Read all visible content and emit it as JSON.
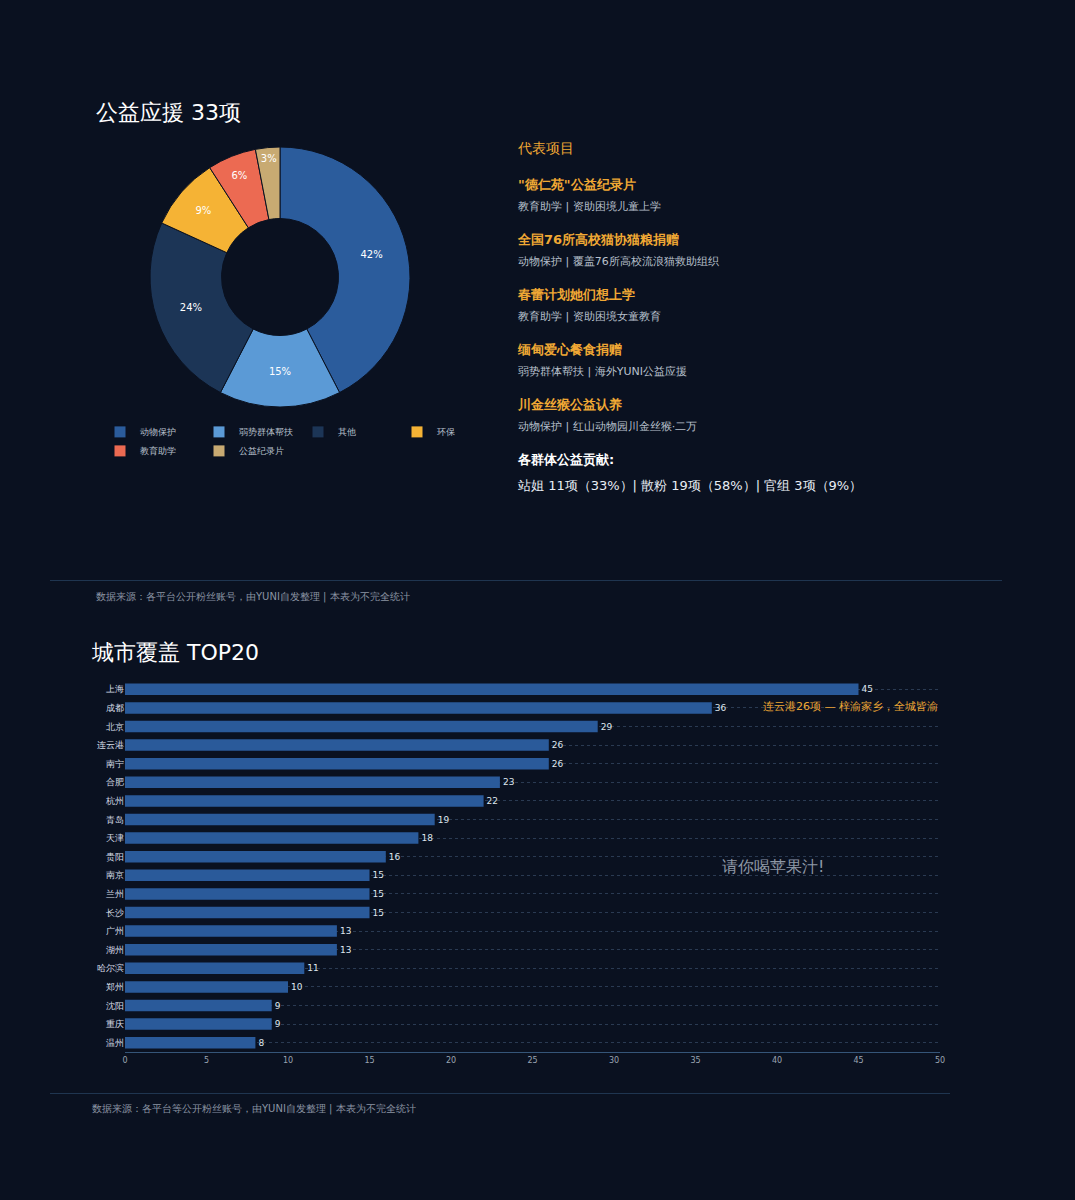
{
  "chart_data": [
    {
      "type": "donut",
      "title": "公益应援 33项",
      "categories": [
        "动物保护",
        "弱势群体帮扶",
        "其他",
        "环保",
        "教育助学",
        "公益纪录片"
      ],
      "values": [
        42,
        15,
        24,
        9,
        6,
        3
      ],
      "value_labels": [
        "42%",
        "15%",
        "24%",
        "9%",
        "6%",
        "3%"
      ],
      "colors": [
        "#2b5c9c",
        "#5b9ad6",
        "#1c3556",
        "#f5b335",
        "#ec6a52",
        "#c8aa72"
      ],
      "data_labels": true,
      "legend": "bottom"
    },
    {
      "type": "bar",
      "orientation": "horizontal",
      "title": "城市覆盖 TOP20",
      "subtitle": "连云港26项 — 梓渝家乡，全城皆渝",
      "annotations": [
        "请你喝苹果汁!"
      ],
      "categories": [
        "上海",
        "成都",
        "北京",
        "连云港",
        "南宁",
        "合肥",
        "杭州",
        "青岛",
        "天津",
        "贵阳",
        "南京",
        "兰州",
        "长沙",
        "广州",
        "湖州",
        "哈尔滨",
        "郑州",
        "沈阳",
        "重庆",
        "温州"
      ],
      "values": [
        45,
        36,
        29,
        26,
        26,
        23,
        22,
        19,
        18,
        16,
        15,
        15,
        15,
        13,
        13,
        11,
        10,
        9,
        9,
        8
      ],
      "color": "#2a5a9a",
      "xlim": [
        0,
        50
      ],
      "xticks": [
        0,
        5,
        10,
        15,
        20,
        25,
        30,
        35,
        40,
        45,
        50
      ],
      "grid": true,
      "data_labels": true
    }
  ],
  "highlights": {
    "title": "代表项目",
    "items": [
      {
        "name": "\"德仁苑\"公益纪录片",
        "detail": "教育助学 | 资助困境儿童上学"
      },
      {
        "name": "全国76所高校猫协猫粮捐赠",
        "detail": "动物保护 | 覆盖76所高校流浪猫救助组织"
      },
      {
        "name": "春蕾计划她们想上学",
        "detail": "教育助学 | 资助困境女童教育"
      },
      {
        "name": "缅甸爱心餐食捐赠",
        "detail": "弱势群体帮扶 | 海外YUNI公益应援"
      },
      {
        "name": "川金丝猴公益认养",
        "detail": "动物保护 | 红山动物园川金丝猴·二万"
      }
    ],
    "contributions_title": "各群体公益贡献:",
    "contributions": "站姐 11项（33%）| 散粉 19项（58%）| 官组 3项（9%）"
  },
  "sources": [
    "数据来源：各平台公开粉丝账号，由YUNI自发整理 | 本表为不完全统计",
    "数据来源：各平台等公开粉丝账号，由YUNI自发整理 | 本表为不完全统计"
  ]
}
